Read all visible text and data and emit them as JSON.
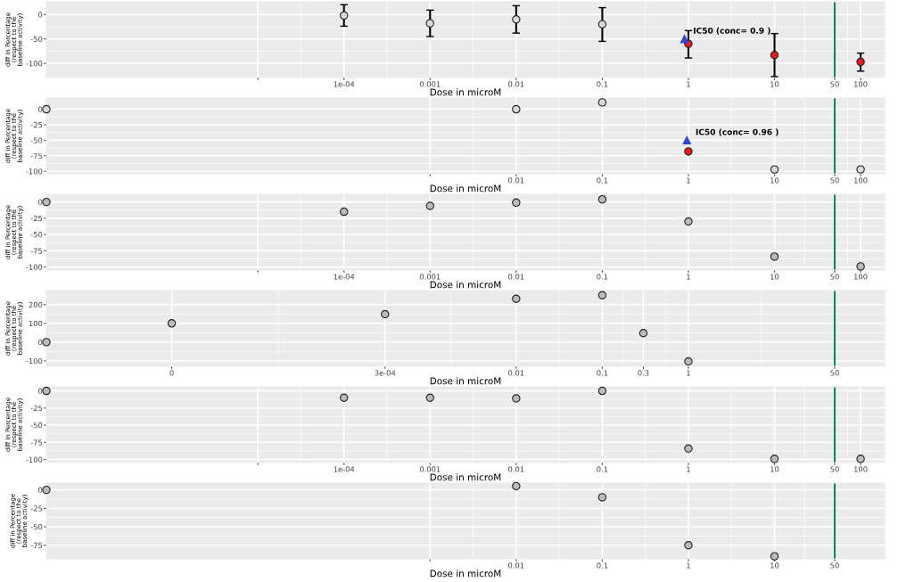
{
  "chart_data": [
    {
      "type": "scatter",
      "xlabel": "Dose in microM",
      "ylabel": "diff in Percentage (respect to the baseline activity)",
      "log": "x",
      "grid": true,
      "xlim": [
        3.5e-08,
        190
      ],
      "xticks": [
        {
          "value": 1e-05,
          "label": null
        },
        {
          "value": 0.0001,
          "label": "1e-04"
        },
        0.001,
        0.01,
        0.1,
        1,
        10,
        50,
        100
      ],
      "ylim": [
        -129,
        26
      ],
      "yticks": [
        0,
        -50,
        -100
      ],
      "series": [
        {
          "x": [
            0.0001,
            0.001,
            0.01,
            0.1
          ],
          "values": [
            -2,
            -18,
            -10,
            -20
          ],
          "errors": [
            [
              -24,
              20
            ],
            [
              -45,
              9
            ],
            [
              -38,
              18
            ],
            [
              -55,
              14
            ]
          ],
          "color": "#d9d9d9",
          "marker": "circle"
        },
        {
          "x": [
            1,
            10,
            100
          ],
          "values": [
            -60,
            -83,
            -97
          ],
          "errors": [
            [
              -89,
              -33
            ],
            [
              -127,
              -39
            ],
            [
              -116,
              -79
            ]
          ],
          "color": "#e41a1c",
          "marker": "circle"
        },
        {
          "x": [
            0.9
          ],
          "values": [
            -50
          ],
          "color": "#3344cc",
          "marker": "triangle"
        }
      ],
      "annotations": [
        {
          "text": "IC50 (conc= 0.9 )",
          "x": 0.9,
          "y": -50
        }
      ],
      "ref_lines": [
        {
          "axis": "x",
          "value": 50,
          "color": "#118855"
        }
      ]
    },
    {
      "type": "scatter",
      "xlabel": "Dose in microM",
      "ylabel": "diff in Percentage (respect to the baseline activity)",
      "log": "x",
      "grid": true,
      "xlim": [
        3.5e-08,
        190
      ],
      "xticks": [
        {
          "value": 0.001,
          "label": null
        },
        0.01,
        0.1,
        1,
        10,
        50,
        100
      ],
      "ylim": [
        -104,
        18
      ],
      "yticks": [
        0,
        -25,
        -50,
        -75,
        -100
      ],
      "series": [
        {
          "x": [
            3.5e-08,
            0.01,
            0.1,
            10,
            100
          ],
          "values": [
            0,
            0,
            11,
            -97,
            -97
          ],
          "color": "#d9d9d9",
          "marker": "circle"
        },
        {
          "x": [
            1
          ],
          "values": [
            -68
          ],
          "color": "#e41a1c",
          "marker": "circle"
        },
        {
          "x": [
            0.96
          ],
          "values": [
            -50
          ],
          "color": "#3344cc",
          "marker": "triangle"
        }
      ],
      "annotations": [
        {
          "text": "IC50 (conc= 0.96 )",
          "x": 0.96,
          "y": -50
        }
      ],
      "ref_lines": [
        {
          "axis": "x",
          "value": 50,
          "color": "#118855"
        }
      ]
    },
    {
      "type": "scatter",
      "xlabel": "Dose in microM",
      "ylabel": "diff in Percentage (respect to the baseline activity)",
      "log": "x",
      "grid": true,
      "xlim": [
        3.5e-08,
        190
      ],
      "xticks": [
        {
          "value": 1e-05,
          "label": null
        },
        {
          "value": 0.0001,
          "label": "1e-04"
        },
        0.001,
        0.01,
        0.1,
        1,
        10,
        50,
        100
      ],
      "ylim": [
        -104.6,
        11.8
      ],
      "yticks": [
        0,
        -25,
        -50,
        -75,
        -100
      ],
      "series": [
        {
          "x": [
            3.5e-08,
            0.0001,
            0.001,
            0.01,
            0.1,
            1,
            10,
            100
          ],
          "values": [
            0,
            -15,
            -6,
            -1,
            4,
            -30,
            -84,
            -99
          ],
          "color": "#bbbbbb",
          "marker": "circle"
        }
      ],
      "ref_lines": [
        {
          "axis": "x",
          "value": 50,
          "color": "#118855"
        }
      ]
    },
    {
      "type": "scatter",
      "xlabel": "Dose in microM",
      "ylabel": "diff in Percentage (respect to the baseline activity)",
      "log": "x",
      "grid": true,
      "xlim": [
        3.5e-08,
        190
      ],
      "xticks": [
        {
          "value": 1e-06,
          "label": "0"
        },
        {
          "value": 0.0003,
          "label": "3e-04"
        },
        0.01,
        0.1,
        0.3,
        1,
        50
      ],
      "ylim": [
        -129,
        275
      ],
      "yticks": [
        -100,
        0,
        100,
        200
      ],
      "series": [
        {
          "x": [
            3.5e-08,
            1e-06,
            0.0003,
            0.01,
            0.1,
            0.3,
            1
          ],
          "values": [
            0,
            100,
            149,
            231,
            250,
            48,
            -103
          ],
          "color": "#bbbbbb",
          "marker": "circle"
        }
      ],
      "ref_lines": [
        {
          "axis": "x",
          "value": 50,
          "color": "#118855"
        }
      ]
    },
    {
      "type": "scatter",
      "xlabel": "Dose in microM",
      "ylabel": "diff in Percentage (respect to the baseline activity)",
      "log": "x",
      "grid": true,
      "xlim": [
        3.5e-08,
        190
      ],
      "xticks": [
        {
          "value": 1e-05,
          "label": null
        },
        {
          "value": 0.0001,
          "label": "1e-04"
        },
        0.001,
        0.01,
        0.1,
        1,
        10,
        50,
        100
      ],
      "ylim": [
        -104.4,
        5.9
      ],
      "yticks": [
        0,
        -25,
        -50,
        -75,
        -100
      ],
      "series": [
        {
          "x": [
            3.5e-08,
            0.0001,
            0.001,
            0.01,
            0.1,
            1,
            10,
            100
          ],
          "values": [
            0,
            -10,
            -10,
            -11,
            0,
            -84,
            -99,
            -99
          ],
          "color": "#bbbbbb",
          "marker": "circle"
        }
      ],
      "ref_lines": [
        {
          "axis": "x",
          "value": 50,
          "color": "#118855"
        }
      ]
    },
    {
      "type": "scatter",
      "xlabel": "Dose in microM",
      "ylabel": "diff in Percentage (respect to the baseline activity)",
      "log": "x",
      "grid": true,
      "xlim": [
        3.5e-08,
        190
      ],
      "xticks": [
        {
          "value": 0.001,
          "label": null
        },
        0.01,
        0.1,
        1,
        10,
        50
      ],
      "ylim": [
        -93.4,
        9.2
      ],
      "yticks": [
        0,
        -25,
        -50,
        -75
      ],
      "series": [
        {
          "x": [
            3.5e-08,
            0.01,
            0.1,
            1,
            10
          ],
          "values": [
            0,
            5,
            -10,
            -75,
            -90
          ],
          "color": "#bbbbbb",
          "marker": "circle"
        }
      ],
      "ref_lines": [
        {
          "axis": "x",
          "value": 50,
          "color": "#118855"
        }
      ]
    }
  ]
}
